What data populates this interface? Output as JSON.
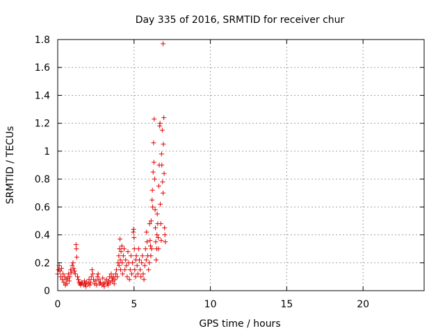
{
  "chart_data": {
    "type": "scatter",
    "title": "Day 335 of 2016, SRMTID for receiver chur",
    "xlabel": "GPS time / hours",
    "ylabel": "SRMTID / TECUs",
    "xlim": [
      0,
      24
    ],
    "ylim": [
      0,
      1.8
    ],
    "xticks": [
      0,
      5,
      10,
      15,
      20
    ],
    "xtick_labels": [
      "0",
      "5",
      "10",
      "15",
      "20"
    ],
    "yticks": [
      0,
      0.2,
      0.4,
      0.6,
      0.8,
      1.0,
      1.2,
      1.4,
      1.6,
      1.8
    ],
    "ytick_labels": [
      "0",
      "0.2",
      "0.4",
      "0.6",
      "0.8",
      "1",
      "1.2",
      "1.4",
      "1.6",
      "1.8"
    ],
    "grid": true,
    "marker": "+",
    "marker_color": "#e00000",
    "series": [
      {
        "name": "SRMTID",
        "points": [
          [
            0.0,
            0.12
          ],
          [
            0.05,
            0.15
          ],
          [
            0.1,
            0.18
          ],
          [
            0.15,
            0.14
          ],
          [
            0.2,
            0.1
          ],
          [
            0.25,
            0.16
          ],
          [
            0.3,
            0.08
          ],
          [
            0.35,
            0.12
          ],
          [
            0.4,
            0.06
          ],
          [
            0.45,
            0.1
          ],
          [
            0.5,
            0.04
          ],
          [
            0.55,
            0.08
          ],
          [
            0.6,
            0.05
          ],
          [
            0.65,
            0.09
          ],
          [
            0.7,
            0.12
          ],
          [
            0.75,
            0.07
          ],
          [
            0.8,
            0.1
          ],
          [
            0.85,
            0.15
          ],
          [
            0.9,
            0.13
          ],
          [
            0.95,
            0.18
          ],
          [
            1.0,
            0.2
          ],
          [
            1.05,
            0.16
          ],
          [
            1.1,
            0.14
          ],
          [
            1.15,
            0.12
          ],
          [
            1.2,
            0.33
          ],
          [
            1.22,
            0.3
          ],
          [
            1.25,
            0.24
          ],
          [
            1.3,
            0.1
          ],
          [
            1.35,
            0.08
          ],
          [
            1.4,
            0.06
          ],
          [
            1.45,
            0.05
          ],
          [
            1.5,
            0.04
          ],
          [
            1.55,
            0.06
          ],
          [
            1.6,
            0.05
          ],
          [
            1.7,
            0.04
          ],
          [
            1.75,
            0.07
          ],
          [
            1.8,
            0.05
          ],
          [
            1.85,
            0.03
          ],
          [
            1.9,
            0.06
          ],
          [
            2.0,
            0.05
          ],
          [
            2.05,
            0.08
          ],
          [
            2.1,
            0.04
          ],
          [
            2.15,
            0.06
          ],
          [
            2.2,
            0.1
          ],
          [
            2.25,
            0.15
          ],
          [
            2.3,
            0.12
          ],
          [
            2.35,
            0.08
          ],
          [
            2.4,
            0.05
          ],
          [
            2.5,
            0.07
          ],
          [
            2.55,
            0.04
          ],
          [
            2.6,
            0.1
          ],
          [
            2.65,
            0.12
          ],
          [
            2.7,
            0.08
          ],
          [
            2.75,
            0.05
          ],
          [
            2.8,
            0.06
          ],
          [
            2.9,
            0.04
          ],
          [
            2.95,
            0.09
          ],
          [
            3.0,
            0.05
          ],
          [
            3.05,
            0.03
          ],
          [
            3.1,
            0.06
          ],
          [
            3.2,
            0.08
          ],
          [
            3.25,
            0.05
          ],
          [
            3.3,
            0.04
          ],
          [
            3.35,
            0.07
          ],
          [
            3.4,
            0.1
          ],
          [
            3.45,
            0.06
          ],
          [
            3.5,
            0.12
          ],
          [
            3.55,
            0.09
          ],
          [
            3.6,
            0.07
          ],
          [
            3.65,
            0.1
          ],
          [
            3.7,
            0.05
          ],
          [
            3.75,
            0.08
          ],
          [
            3.8,
            0.12
          ],
          [
            3.85,
            0.15
          ],
          [
            3.9,
            0.1
          ],
          [
            3.95,
            0.2
          ],
          [
            4.0,
            0.25
          ],
          [
            4.02,
            0.18
          ],
          [
            4.05,
            0.3
          ],
          [
            4.08,
            0.37
          ],
          [
            4.1,
            0.22
          ],
          [
            4.12,
            0.15
          ],
          [
            4.15,
            0.28
          ],
          [
            4.2,
            0.32
          ],
          [
            4.22,
            0.2
          ],
          [
            4.25,
            0.12
          ],
          [
            4.3,
            0.25
          ],
          [
            4.35,
            0.3
          ],
          [
            4.4,
            0.15
          ],
          [
            4.45,
            0.22
          ],
          [
            4.5,
            0.18
          ],
          [
            4.55,
            0.1
          ],
          [
            4.6,
            0.28
          ],
          [
            4.65,
            0.2
          ],
          [
            4.7,
            0.08
          ],
          [
            4.75,
            0.15
          ],
          [
            4.8,
            0.25
          ],
          [
            4.85,
            0.12
          ],
          [
            4.9,
            0.2
          ],
          [
            4.95,
            0.42
          ],
          [
            4.97,
            0.44
          ],
          [
            5.0,
            0.38
          ],
          [
            5.02,
            0.3
          ],
          [
            5.05,
            0.15
          ],
          [
            5.1,
            0.1
          ],
          [
            5.12,
            0.22
          ],
          [
            5.15,
            0.25
          ],
          [
            5.2,
            0.18
          ],
          [
            5.25,
            0.12
          ],
          [
            5.3,
            0.3
          ],
          [
            5.35,
            0.22
          ],
          [
            5.4,
            0.15
          ],
          [
            5.45,
            0.1
          ],
          [
            5.5,
            0.2
          ],
          [
            5.55,
            0.25
          ],
          [
            5.6,
            0.12
          ],
          [
            5.65,
            0.08
          ],
          [
            5.7,
            0.18
          ],
          [
            5.75,
            0.3
          ],
          [
            5.8,
            0.22
          ],
          [
            5.82,
            0.42
          ],
          [
            5.85,
            0.35
          ],
          [
            5.9,
            0.25
          ],
          [
            5.95,
            0.15
          ],
          [
            6.0,
            0.2
          ],
          [
            6.02,
            0.48
          ],
          [
            6.05,
            0.36
          ],
          [
            6.08,
            0.32
          ],
          [
            6.1,
            0.25
          ],
          [
            6.12,
            0.5
          ],
          [
            6.15,
            0.3
          ],
          [
            6.18,
            0.65
          ],
          [
            6.2,
            0.72
          ],
          [
            6.22,
            0.6
          ],
          [
            6.25,
            0.85
          ],
          [
            6.28,
            1.06
          ],
          [
            6.3,
            0.92
          ],
          [
            6.32,
            1.23
          ],
          [
            6.35,
            0.8
          ],
          [
            6.38,
            0.58
          ],
          [
            6.4,
            0.45
          ],
          [
            6.42,
            0.35
          ],
          [
            6.45,
            0.22
          ],
          [
            6.48,
            0.3
          ],
          [
            6.5,
            0.4
          ],
          [
            6.52,
            0.55
          ],
          [
            6.55,
            0.48
          ],
          [
            6.58,
            0.38
          ],
          [
            6.6,
            0.3
          ],
          [
            6.62,
            0.75
          ],
          [
            6.65,
            0.9
          ],
          [
            6.68,
            1.18
          ],
          [
            6.7,
            1.2
          ],
          [
            6.72,
            0.62
          ],
          [
            6.75,
            0.48
          ],
          [
            6.78,
            0.36
          ],
          [
            6.8,
            0.98
          ],
          [
            6.82,
            0.9
          ],
          [
            6.85,
            1.15
          ],
          [
            6.87,
            0.78
          ],
          [
            6.9,
            0.7
          ],
          [
            6.92,
            1.05
          ],
          [
            6.95,
            1.24
          ],
          [
            6.97,
            0.84
          ],
          [
            7.0,
            0.45
          ],
          [
            7.02,
            0.4
          ],
          [
            7.05,
            0.35
          ],
          [
            6.9,
            1.77
          ]
        ]
      }
    ]
  }
}
